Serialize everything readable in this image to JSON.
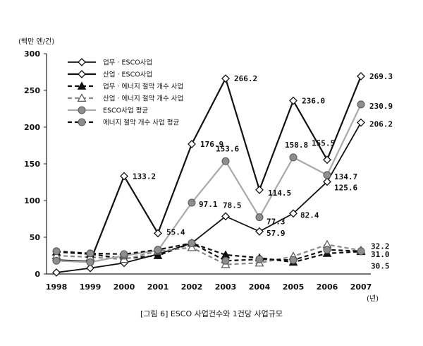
{
  "chart_data": {
    "type": "line",
    "ylabel": "(백만 엔/건)",
    "xlabel": "(년)",
    "caption": "[그림 6] ESCO 사업건수와 1건당 사업규모",
    "ylim": [
      0,
      300
    ],
    "yticks": [
      0,
      50,
      100,
      150,
      200,
      250,
      300
    ],
    "categories": [
      "1998",
      "1999",
      "2000",
      "2001",
      "2002",
      "2003",
      "2004",
      "2005",
      "2006",
      "2007"
    ],
    "legend_position": "top-left",
    "grid": false,
    "series": [
      {
        "name": "업무 · ESCO사업",
        "color": "#111111",
        "line": "solid-thin",
        "marker": "diamond-open",
        "values": [
          2,
          8,
          15,
          27,
          42,
          78.5,
          57.9,
          82.4,
          125.6,
          206.2
        ]
      },
      {
        "name": "산업 · ESCO사업",
        "color": "#111111",
        "line": "solid",
        "marker": "diamond-open",
        "values": [
          19,
          17,
          133.2,
          55.4,
          176.9,
          266.2,
          114.5,
          236.0,
          155.5,
          269.3
        ]
      },
      {
        "name": "업무 · 에너지 절약 개수 사업",
        "color": "#111111",
        "line": "dashed",
        "marker": "triangle-filled",
        "values": [
          30,
          27,
          21,
          25,
          42,
          26,
          22,
          16,
          28,
          30.5
        ]
      },
      {
        "name": "산업 · 에너지 절약 개수 사업",
        "color": "#8a8a8a",
        "line": "dashed",
        "marker": "triangle-open",
        "values": [
          25,
          23,
          20,
          31,
          36,
          13,
          15,
          24,
          40,
          32.2
        ]
      },
      {
        "name": "ESCO사업 평균",
        "color": "#a9a9a9",
        "line": "solid",
        "marker": "circle-gray",
        "values": [
          18,
          16,
          25,
          32,
          97.1,
          153.6,
          77.3,
          158.8,
          134.7,
          230.9
        ]
      },
      {
        "name": "에너지 절약 개수 사업 평균",
        "color": "#111111",
        "line": "dashed",
        "marker": "circle-gray",
        "values": [
          31,
          28,
          27,
          33,
          42,
          18,
          20,
          19,
          33,
          31.0
        ]
      }
    ],
    "labels": [
      {
        "series": 1,
        "index": 2,
        "text": "133.2"
      },
      {
        "series": 1,
        "index": 3,
        "text": "55.4"
      },
      {
        "series": 1,
        "index": 4,
        "text": "176.9"
      },
      {
        "series": 1,
        "index": 5,
        "text": "266.2"
      },
      {
        "series": 1,
        "index": 6,
        "text": "114.5"
      },
      {
        "series": 1,
        "index": 7,
        "text": "236.0"
      },
      {
        "series": 1,
        "index": 8,
        "text": "155.5"
      },
      {
        "series": 1,
        "index": 9,
        "text": "269.3"
      },
      {
        "series": 0,
        "index": 5,
        "text": "78.5"
      },
      {
        "series": 0,
        "index": 6,
        "text": "57.9"
      },
      {
        "series": 0,
        "index": 7,
        "text": "82.4"
      },
      {
        "series": 0,
        "index": 8,
        "text": "125.6"
      },
      {
        "series": 0,
        "index": 9,
        "text": "206.2"
      },
      {
        "series": 4,
        "index": 4,
        "text": "97.1"
      },
      {
        "series": 4,
        "index": 5,
        "text": "153.6"
      },
      {
        "series": 4,
        "index": 6,
        "text": "77.3"
      },
      {
        "series": 4,
        "index": 7,
        "text": "158.8"
      },
      {
        "series": 4,
        "index": 8,
        "text": "134.7"
      },
      {
        "series": 4,
        "index": 9,
        "text": "230.9"
      },
      {
        "series": 3,
        "index": 9,
        "text": "32.2"
      },
      {
        "series": 5,
        "index": 9,
        "text": "31.0"
      },
      {
        "series": 2,
        "index": 9,
        "text": "30.5"
      }
    ]
  }
}
